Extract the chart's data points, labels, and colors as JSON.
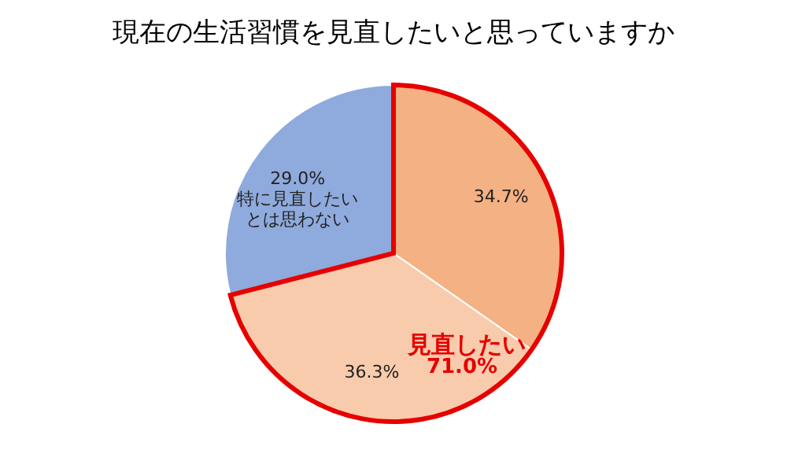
{
  "chart_data": {
    "type": "pie",
    "title": "現在の生活習慣を見直したいと思っていますか",
    "categories": [
      null,
      null,
      "特に見直したいとは思わない"
    ],
    "values": [
      34.7,
      36.3,
      29.0
    ],
    "colors": [
      "#f4b183",
      "#f8cbad",
      "#8faadc"
    ],
    "value_labels": [
      "34.7%",
      "36.3%",
      "29.0%"
    ],
    "annotations": [
      "見直したい",
      "71.0%"
    ],
    "legend": false
  }
}
